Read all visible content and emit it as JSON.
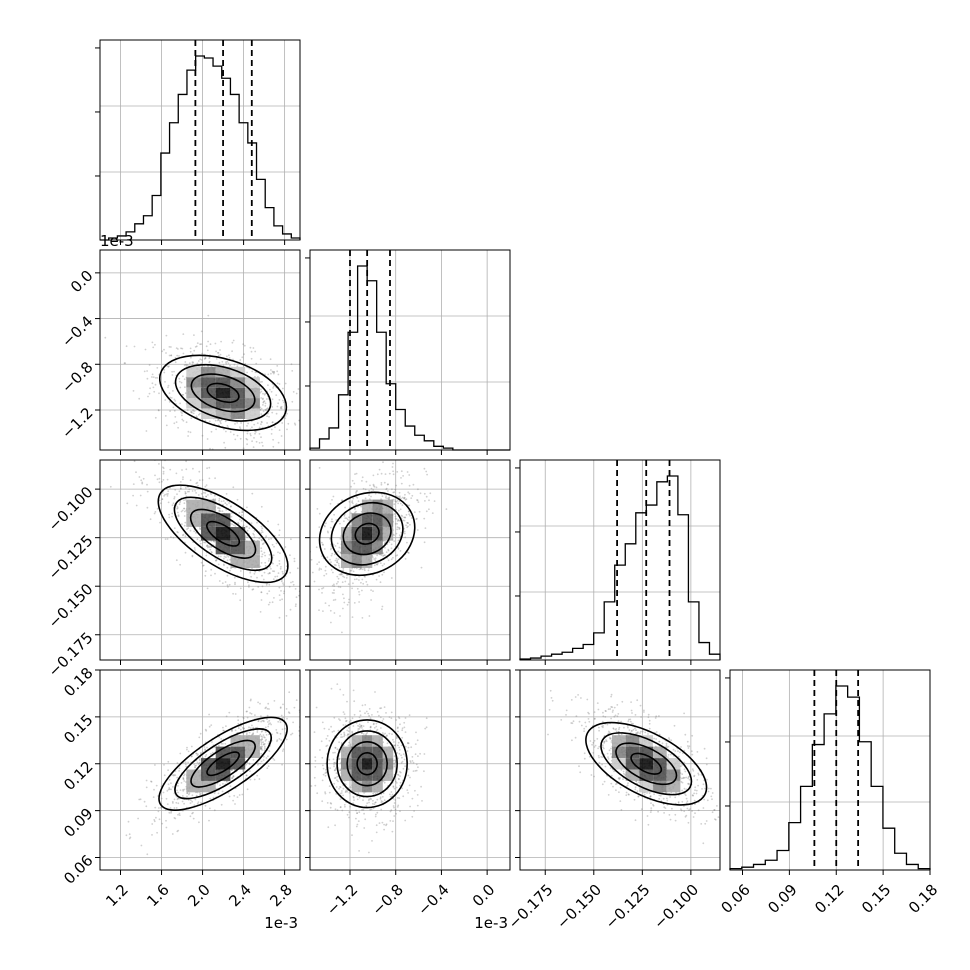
{
  "chart_data": {
    "type": "corner",
    "parameters": [
      {
        "offset": "1e-3",
        "ticks": [
          1.2,
          1.6,
          2.0,
          2.4,
          2.8
        ],
        "tick_labels": [
          "1.2",
          "1.6",
          "2.0",
          "2.4",
          "2.8"
        ],
        "range": [
          1.0,
          2.95
        ],
        "quantiles": [
          1.93,
          2.2,
          2.48
        ]
      },
      {
        "offset": "1e-3",
        "ticks": [
          -1.2,
          -0.8,
          -0.4,
          0.0
        ],
        "tick_labels": [
          "−1.2",
          "−0.8",
          "−0.4",
          "0.0"
        ],
        "range": [
          -1.55,
          0.2
        ],
        "quantiles": [
          -1.2,
          -1.05,
          -0.85
        ]
      },
      {
        "offset": "",
        "ticks": [
          -0.175,
          -0.15,
          -0.125,
          -0.1
        ],
        "tick_labels": [
          "−0.175",
          "−0.150",
          "−0.125",
          "−0.100"
        ],
        "range": [
          -0.188,
          -0.085
        ],
        "quantiles": [
          -0.138,
          -0.123,
          -0.111
        ]
      },
      {
        "offset": "",
        "ticks": [
          0.06,
          0.09,
          0.12,
          0.15,
          0.18
        ],
        "tick_labels": [
          "0.06",
          "0.09",
          "0.12",
          "0.15",
          "0.18"
        ],
        "range": [
          0.052,
          0.18
        ],
        "quantiles": [
          0.106,
          0.12,
          0.134
        ]
      }
    ],
    "y_tick_labels": {
      "row1": [
        "0.0",
        "−0.4",
        "−0.8",
        "−1.2"
      ],
      "row2": [
        "−0.100",
        "−0.125",
        "−0.150",
        "−0.175"
      ],
      "row3": [
        "0.18",
        "0.15",
        "0.12",
        "0.09",
        "0.06"
      ]
    },
    "histograms": [
      [
        0,
        1,
        2,
        4,
        8,
        12,
        22,
        43,
        58,
        72,
        84,
        91,
        90,
        86,
        80,
        72,
        58,
        48,
        30,
        16,
        7,
        3,
        1
      ],
      [
        1,
        6,
        12,
        30,
        64,
        100,
        92,
        64,
        36,
        22,
        13,
        8,
        5,
        2,
        1,
        0,
        0,
        0,
        0,
        0,
        0
      ],
      [
        0.5,
        1,
        2,
        3,
        4,
        6,
        8,
        14,
        30,
        49,
        60,
        76,
        80,
        92,
        95,
        75,
        30,
        9,
        3
      ],
      [
        0.5,
        1,
        2,
        3.5,
        7,
        17,
        30,
        45,
        56,
        66,
        62,
        46,
        30,
        15,
        6,
        2,
        0.5
      ]
    ],
    "correlations": {
      "1-0": -0.35,
      "2-0": -0.75,
      "3-0": 0.75,
      "2-1": 0.5,
      "3-1": 0.0,
      "3-2": -0.6
    },
    "grid": true
  }
}
